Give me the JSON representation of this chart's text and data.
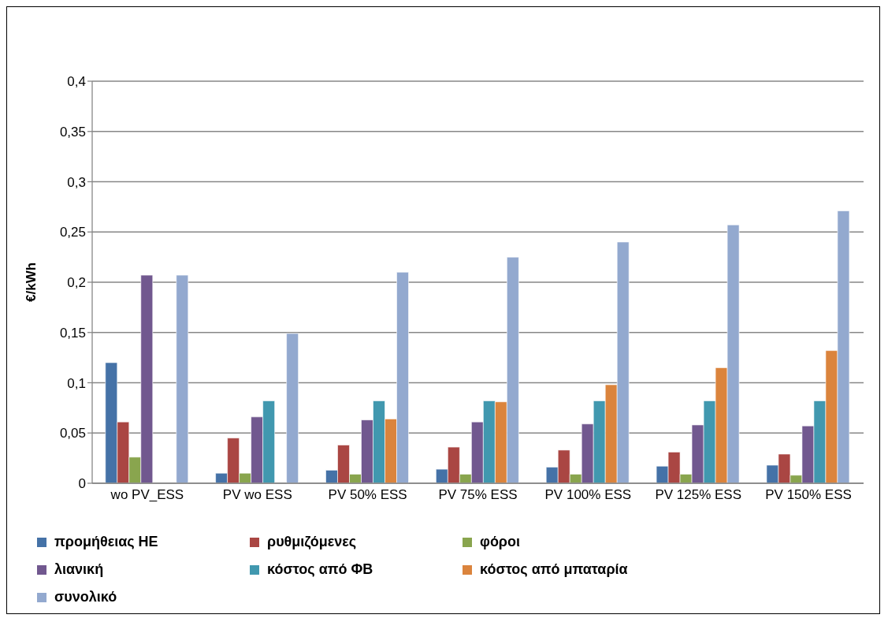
{
  "chart_data": {
    "type": "bar",
    "ylabel": "€/kWh",
    "categories": [
      "wo PV_ESS",
      "PV wo ESS",
      "PV 50% ESS",
      "PV 75% ESS",
      "PV 100% ESS",
      "PV 125% ESS",
      "PV 150% ESS"
    ],
    "series": [
      {
        "name": "προμήθειας ΗΕ",
        "color": "#4572a7",
        "values": [
          0.12,
          0.01,
          0.013,
          0.014,
          0.016,
          0.017,
          0.018
        ]
      },
      {
        "name": "ρυθμιζόμενες",
        "color": "#aa4643",
        "values": [
          0.061,
          0.045,
          0.038,
          0.036,
          0.033,
          0.031,
          0.029
        ]
      },
      {
        "name": "φόροι",
        "color": "#89a54e",
        "values": [
          0.026,
          0.01,
          0.009,
          0.009,
          0.009,
          0.009,
          0.008
        ]
      },
      {
        "name": "λιανική",
        "color": "#71588f",
        "values": [
          0.207,
          0.066,
          0.063,
          0.061,
          0.059,
          0.058,
          0.057
        ]
      },
      {
        "name": "κόστος από ΦΒ",
        "color": "#4198af",
        "values": [
          null,
          0.082,
          0.082,
          0.082,
          0.082,
          0.082,
          0.082
        ]
      },
      {
        "name": "κόστος από μπαταρία",
        "color": "#db843d",
        "values": [
          null,
          null,
          0.064,
          0.081,
          0.098,
          0.115,
          0.132
        ]
      },
      {
        "name": "συνολικό",
        "color": "#93a9cf",
        "values": [
          0.207,
          0.149,
          0.21,
          0.225,
          0.24,
          0.257,
          0.271
        ]
      }
    ],
    "ylim": [
      0,
      0.4
    ],
    "yticks": [
      0,
      {
        "value": 0.05,
        "label": "0,05"
      },
      {
        "value": 0.1,
        "label": "0,1"
      },
      {
        "value": 0.15,
        "label": "0,15"
      },
      {
        "value": 0.2,
        "label": "0,2"
      },
      {
        "value": 0.25,
        "label": "0,25"
      },
      {
        "value": 0.3,
        "label": "0,3"
      },
      {
        "value": 0.35,
        "label": "0,35"
      },
      {
        "value": 0.4,
        "label": "0,4"
      }
    ],
    "grid": "y",
    "legend": "bottom"
  }
}
